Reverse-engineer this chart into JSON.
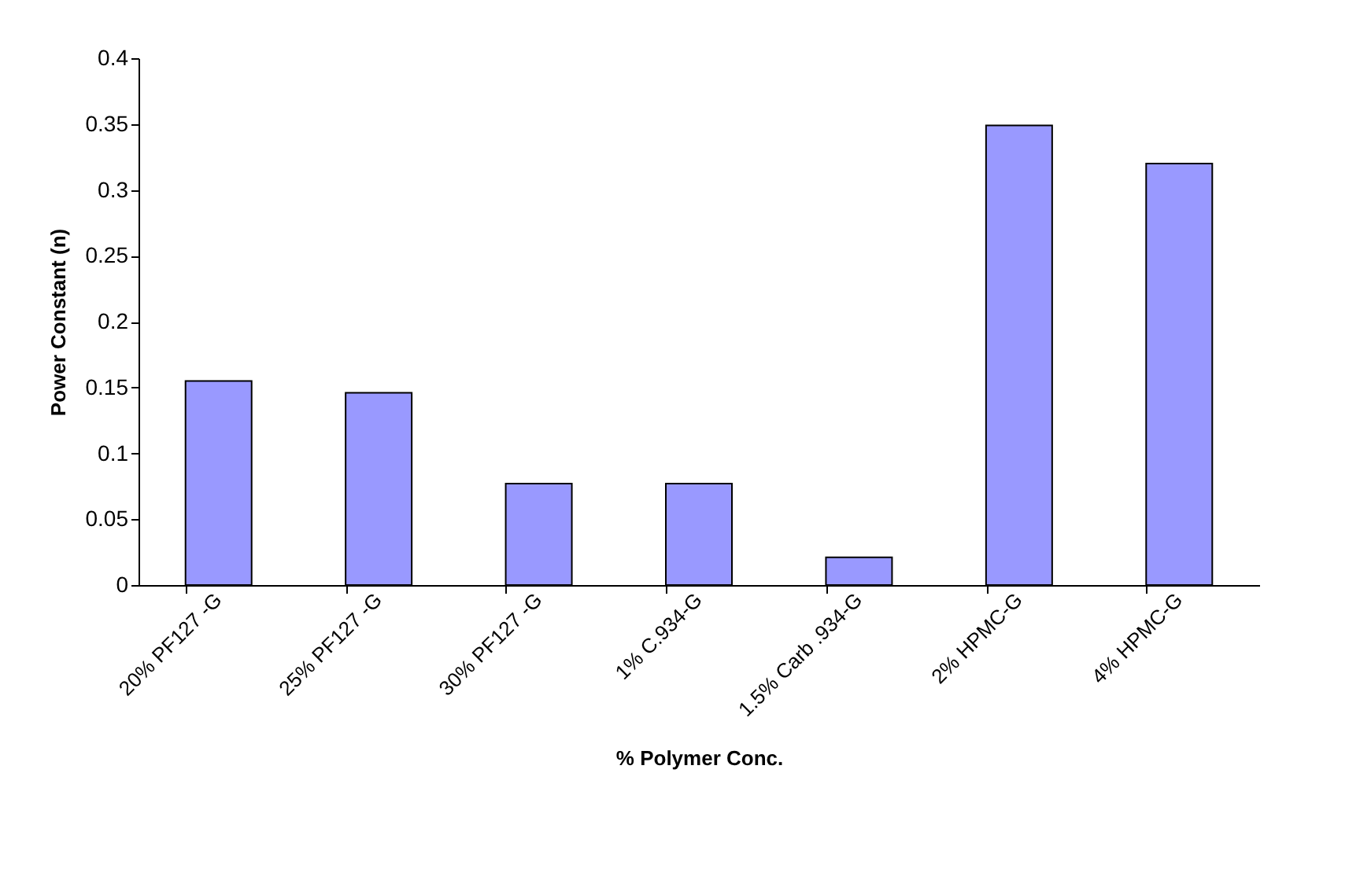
{
  "chart_data": {
    "type": "bar",
    "categories": [
      "20% PF127 -G",
      "25% PF127 -G",
      "30% PF127 -G",
      "1% C.934-G",
      "1.5% Carb .934-G",
      "2% HPMC-G",
      "4% HPMC-G"
    ],
    "values": [
      0.155,
      0.146,
      0.077,
      0.077,
      0.021,
      0.349,
      0.32
    ],
    "color": "#9999ff",
    "xlabel": "% Polymer Conc.",
    "ylabel": "Power Constant (n)",
    "ylim": [
      0,
      0.4
    ],
    "yticks": [
      0,
      0.05,
      0.1,
      0.15,
      0.2,
      0.25,
      0.3,
      0.35,
      0.4
    ],
    "grid": false
  }
}
